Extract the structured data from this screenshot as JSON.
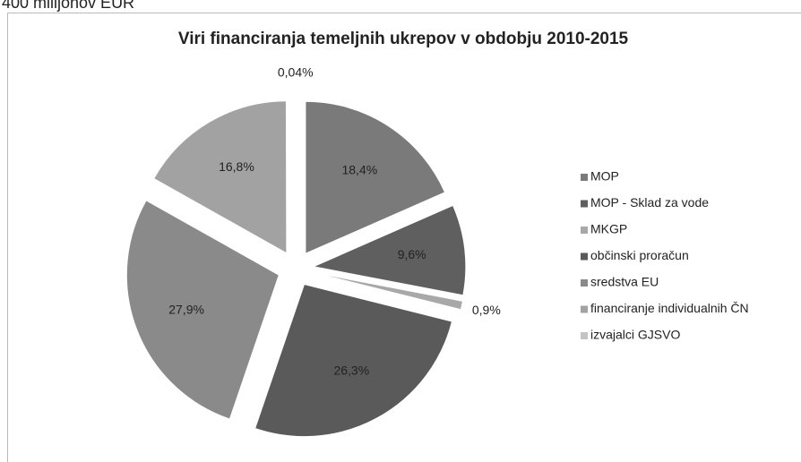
{
  "header_text": "400 milijonov EUR",
  "chart_data": {
    "type": "pie",
    "title": "Viri financiranja temeljnih ukrepov v obdobju 2010-2015",
    "categories": [
      "MOP",
      "MOP - Sklad za vode",
      "MKGP",
      "občinski proračun",
      "sredstva EU",
      "financiranje individualnih ČN",
      "izvajalci GJSVO"
    ],
    "values": [
      18.4,
      9.6,
      0.9,
      26.3,
      27.9,
      16.8,
      0.04
    ],
    "value_labels": [
      "18,4%",
      "9,6%",
      "0,9%",
      "26,3%",
      "27,9%",
      "16,8%",
      "0,04%"
    ],
    "colors": [
      "#7a7a7a",
      "#5f5f5f",
      "#a8a8a8",
      "#5a5a5a",
      "#8a8a8a",
      "#a2a2a2",
      "#c4c4c4"
    ],
    "legend": "right"
  }
}
